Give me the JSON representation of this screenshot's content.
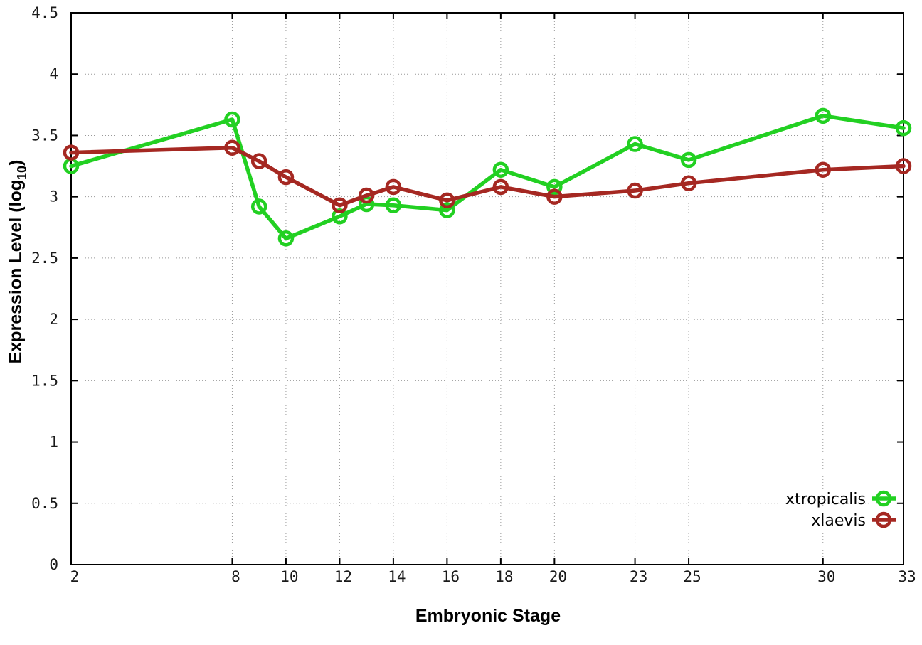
{
  "chart_data": {
    "type": "line",
    "title": "",
    "xlabel": "Embryonic Stage",
    "ylabel": "Expression Level (log10)",
    "ylabel_parts": {
      "main": "Expression Level (log",
      "sub": "10",
      "close": ")"
    },
    "x": [
      2,
      8,
      9,
      10,
      12,
      13,
      14,
      16,
      18,
      20,
      23,
      25,
      30,
      33
    ],
    "series": [
      {
        "name": "xtropicalis",
        "color": "#22d022",
        "values": [
          3.25,
          3.63,
          2.92,
          2.66,
          2.84,
          2.94,
          2.93,
          2.89,
          3.22,
          3.08,
          3.43,
          3.3,
          3.66,
          3.56
        ]
      },
      {
        "name": "xlaevis",
        "color": "#a52822",
        "values": [
          3.36,
          3.4,
          3.29,
          3.16,
          2.93,
          3.01,
          3.08,
          2.97,
          3.08,
          3.0,
          3.05,
          3.11,
          3.22,
          3.25
        ]
      }
    ],
    "xticks": [
      2,
      8,
      10,
      12,
      14,
      16,
      18,
      20,
      23,
      25,
      30,
      33
    ],
    "yticks": [
      0,
      0.5,
      1,
      1.5,
      2,
      2.5,
      3,
      3.5,
      4,
      4.5
    ],
    "xlim": [
      2,
      33
    ],
    "ylim": [
      0,
      4.5
    ],
    "grid": true,
    "legend_position": "bottom-right",
    "marker": "open-circle",
    "colors": {
      "border": "#000000",
      "grid": "#999999",
      "tick_text": "#1a1a1a"
    }
  }
}
